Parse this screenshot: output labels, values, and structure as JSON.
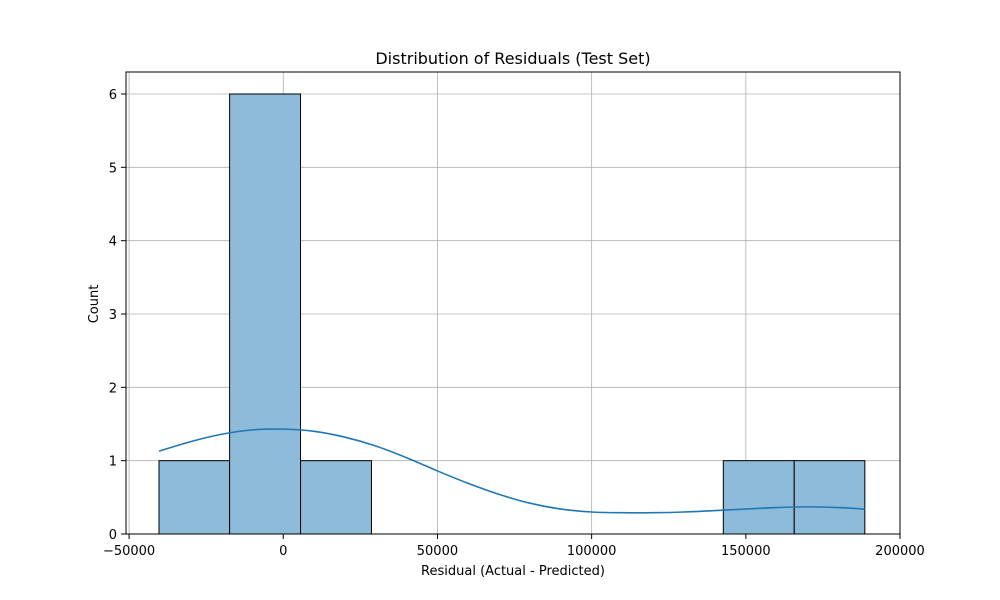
{
  "chart_data": {
    "type": "bar",
    "title": "Distribution of Residuals (Test Set)",
    "xlabel": "Residual (Actual - Predicted)",
    "ylabel": "Count",
    "xlim": [
      -51000,
      200000
    ],
    "ylim": [
      0,
      6.3
    ],
    "grid": true,
    "xticks": [
      -50000,
      0,
      50000,
      100000,
      150000,
      200000
    ],
    "xtick_labels": [
      "−50000",
      "0",
      "50000",
      "100000",
      "150000",
      "200000"
    ],
    "yticks": [
      0,
      1,
      2,
      3,
      4,
      5,
      6
    ],
    "ytick_labels": [
      "0",
      "1",
      "2",
      "3",
      "4",
      "5",
      "6"
    ],
    "bins": [
      {
        "x0": -40300,
        "x1": -17400,
        "count": 1
      },
      {
        "x0": -17400,
        "x1": 5600,
        "count": 6
      },
      {
        "x0": 5600,
        "x1": 28600,
        "count": 1
      },
      {
        "x0": 142700,
        "x1": 165700,
        "count": 1
      },
      {
        "x0": 165700,
        "x1": 188600,
        "count": 1
      }
    ],
    "kde": {
      "x": [
        -40300,
        -30000,
        -20000,
        -10000,
        0,
        10000,
        20000,
        30000,
        40000,
        50000,
        60000,
        70000,
        80000,
        90000,
        100000,
        110000,
        120000,
        130000,
        140000,
        150000,
        160000,
        170000,
        180000,
        188600
      ],
      "y": [
        1.13,
        1.26,
        1.36,
        1.42,
        1.43,
        1.4,
        1.32,
        1.2,
        1.04,
        0.86,
        0.69,
        0.54,
        0.42,
        0.34,
        0.3,
        0.29,
        0.29,
        0.3,
        0.32,
        0.34,
        0.36,
        0.37,
        0.36,
        0.34
      ]
    },
    "colors": {
      "bar_fill": "#8dbbd9",
      "bar_edge": "#000000",
      "kde_line": "#1f77b4",
      "grid": "#b0b0b0"
    }
  }
}
